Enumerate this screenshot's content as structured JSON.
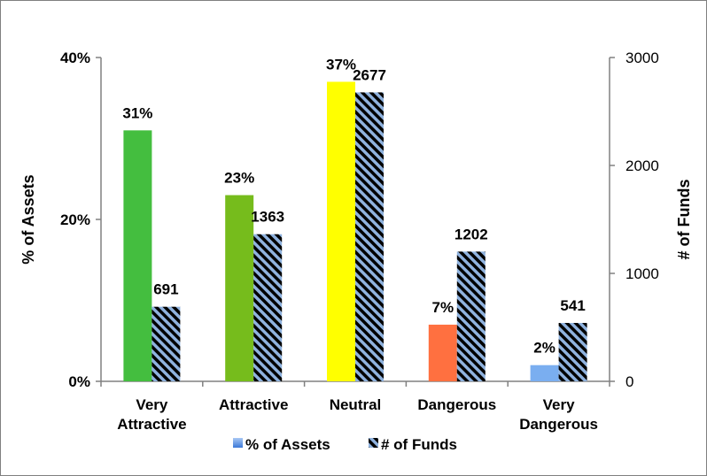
{
  "chart_data": {
    "type": "bar",
    "categories": [
      "Very Attractive",
      "Attractive",
      "Neutral",
      "Dangerous",
      "Very Dangerous"
    ],
    "category_lines": [
      [
        "Very",
        "Attractive"
      ],
      [
        "Attractive"
      ],
      [
        "Neutral"
      ],
      [
        "Dangerous"
      ],
      [
        "Very",
        "Dangerous"
      ]
    ],
    "series": [
      {
        "name": "% of Assets",
        "axis": "left",
        "values": [
          31,
          23,
          37,
          7,
          2
        ],
        "data_labels": [
          "31%",
          "23%",
          "37%",
          "7%",
          "2%"
        ],
        "colors": [
          "#44be3f",
          "#76bc1c",
          "#ffff00",
          "#ff7040",
          "#7aaef0"
        ],
        "legend_color": "#6a9ee8"
      },
      {
        "name": "# of Funds",
        "axis": "right",
        "values": [
          691,
          1363,
          2677,
          1202,
          541
        ],
        "data_labels": [
          "691",
          "1363",
          "2677",
          "1202",
          "541"
        ],
        "fill": "hatched",
        "hatch_colors": [
          "#000000",
          "#8fb2de"
        ]
      }
    ],
    "ylabel": "% of Assets",
    "y2label": "# of Funds",
    "ylim": [
      0,
      40
    ],
    "y2lim": [
      0,
      3000
    ],
    "yticks": [
      "0%",
      "20%",
      "40%"
    ],
    "y2ticks": [
      "0",
      "1000",
      "2000",
      "3000"
    ],
    "grid": false,
    "legend_position": "bottom"
  }
}
